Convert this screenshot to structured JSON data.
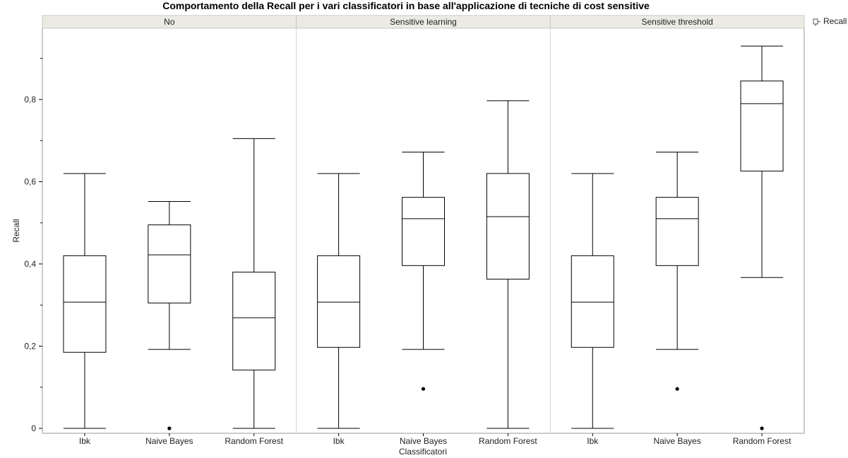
{
  "chart_data": {
    "type": "boxplot",
    "title": "Comportamento della Recall per i vari classificatori in base all'applicazione di tecniche di cost sensitive",
    "xlabel": "Classificatori",
    "ylabel": "Recall",
    "legend": {
      "label": "Recall",
      "placement": "top-right"
    },
    "ylim": [
      0,
      0.96
    ],
    "yticks": [
      {
        "value": 0,
        "label": "0"
      },
      {
        "value": 0.2,
        "label": "0,2"
      },
      {
        "value": 0.4,
        "label": "0,4"
      },
      {
        "value": 0.6,
        "label": "0,6"
      },
      {
        "value": 0.8,
        "label": "0,8"
      }
    ],
    "categories": [
      "Ibk",
      "Naive Bayes",
      "Random Forest"
    ],
    "panels": [
      {
        "label": "No",
        "boxes": [
          {
            "category": "Ibk",
            "min": 0.0,
            "q1": 0.185,
            "median": 0.307,
            "q3": 0.42,
            "max": 0.62,
            "outliers": []
          },
          {
            "category": "Naive Bayes",
            "min": 0.192,
            "q1": 0.305,
            "median": 0.422,
            "q3": 0.495,
            "max": 0.552,
            "outliers": [
              0.0
            ]
          },
          {
            "category": "Random Forest",
            "min": 0.0,
            "q1": 0.142,
            "median": 0.269,
            "q3": 0.38,
            "max": 0.705,
            "outliers": []
          }
        ]
      },
      {
        "label": "Sensitive learning",
        "boxes": [
          {
            "category": "Ibk",
            "min": 0.0,
            "q1": 0.197,
            "median": 0.307,
            "q3": 0.42,
            "max": 0.62,
            "outliers": []
          },
          {
            "category": "Naive Bayes",
            "min": 0.192,
            "q1": 0.396,
            "median": 0.51,
            "q3": 0.562,
            "max": 0.672,
            "outliers": [
              0.096
            ]
          },
          {
            "category": "Random Forest",
            "min": 0.0,
            "q1": 0.363,
            "median": 0.515,
            "q3": 0.62,
            "max": 0.797,
            "outliers": []
          }
        ]
      },
      {
        "label": "Sensitive threshold",
        "boxes": [
          {
            "category": "Ibk",
            "min": 0.0,
            "q1": 0.197,
            "median": 0.307,
            "q3": 0.42,
            "max": 0.62,
            "outliers": []
          },
          {
            "category": "Naive Bayes",
            "min": 0.192,
            "q1": 0.396,
            "median": 0.51,
            "q3": 0.562,
            "max": 0.672,
            "outliers": [
              0.096
            ]
          },
          {
            "category": "Random Forest",
            "min": 0.367,
            "q1": 0.626,
            "median": 0.79,
            "q3": 0.845,
            "max": 0.93,
            "outliers": [
              0.0
            ]
          }
        ]
      }
    ]
  }
}
